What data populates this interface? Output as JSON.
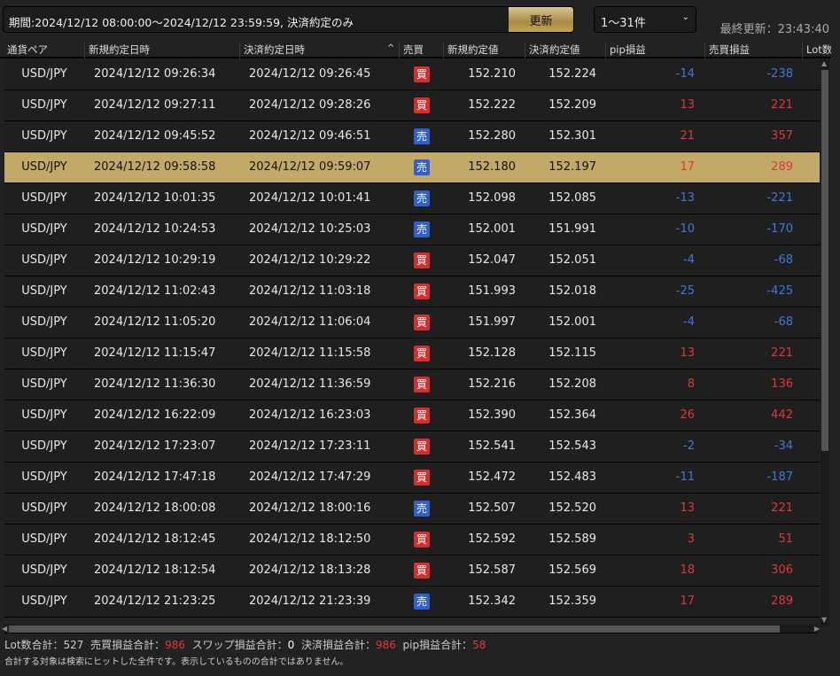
{
  "header": {
    "period": "期間:2024/12/12 08:00:00～2024/12/12 23:59:59, 決済約定のみ",
    "refresh_label": "更新",
    "range": "1～31件",
    "last_updated": "最終更新：23:43:40"
  },
  "columns": [
    "通貨ペア",
    "新規約定日時",
    "決済約定日時",
    "売買",
    "新規約定値",
    "決済約定値",
    "pip損益",
    "売買損益",
    "Lot数"
  ],
  "colors": {
    "buy": "#d32f2f",
    "sell": "#2f5fd0",
    "positive": "#e0363a",
    "negative": "#3c78e0",
    "selected_row": "#c3a968"
  },
  "rows": [
    {
      "pair": "USD/JPY",
      "open": "2024/12/12 09:26:34",
      "close": "2024/12/12 09:26:45",
      "side": "買",
      "open_price": "152.210",
      "close_price": "152.224",
      "pip": "-14",
      "pl": "-238"
    },
    {
      "pair": "USD/JPY",
      "open": "2024/12/12 09:27:11",
      "close": "2024/12/12 09:28:26",
      "side": "買",
      "open_price": "152.222",
      "close_price": "152.209",
      "pip": "13",
      "pl": "221"
    },
    {
      "pair": "USD/JPY",
      "open": "2024/12/12 09:45:52",
      "close": "2024/12/12 09:46:51",
      "side": "売",
      "open_price": "152.280",
      "close_price": "152.301",
      "pip": "21",
      "pl": "357"
    },
    {
      "pair": "USD/JPY",
      "open": "2024/12/12 09:58:58",
      "close": "2024/12/12 09:59:07",
      "side": "売",
      "open_price": "152.180",
      "close_price": "152.197",
      "pip": "17",
      "pl": "289",
      "selected": true
    },
    {
      "pair": "USD/JPY",
      "open": "2024/12/12 10:01:35",
      "close": "2024/12/12 10:01:41",
      "side": "売",
      "open_price": "152.098",
      "close_price": "152.085",
      "pip": "-13",
      "pl": "-221"
    },
    {
      "pair": "USD/JPY",
      "open": "2024/12/12 10:24:53",
      "close": "2024/12/12 10:25:03",
      "side": "売",
      "open_price": "152.001",
      "close_price": "151.991",
      "pip": "-10",
      "pl": "-170"
    },
    {
      "pair": "USD/JPY",
      "open": "2024/12/12 10:29:19",
      "close": "2024/12/12 10:29:22",
      "side": "買",
      "open_price": "152.047",
      "close_price": "152.051",
      "pip": "-4",
      "pl": "-68"
    },
    {
      "pair": "USD/JPY",
      "open": "2024/12/12 11:02:43",
      "close": "2024/12/12 11:03:18",
      "side": "買",
      "open_price": "151.993",
      "close_price": "152.018",
      "pip": "-25",
      "pl": "-425"
    },
    {
      "pair": "USD/JPY",
      "open": "2024/12/12 11:05:20",
      "close": "2024/12/12 11:06:04",
      "side": "買",
      "open_price": "151.997",
      "close_price": "152.001",
      "pip": "-4",
      "pl": "-68"
    },
    {
      "pair": "USD/JPY",
      "open": "2024/12/12 11:15:47",
      "close": "2024/12/12 11:15:58",
      "side": "買",
      "open_price": "152.128",
      "close_price": "152.115",
      "pip": "13",
      "pl": "221"
    },
    {
      "pair": "USD/JPY",
      "open": "2024/12/12 11:36:30",
      "close": "2024/12/12 11:36:59",
      "side": "買",
      "open_price": "152.216",
      "close_price": "152.208",
      "pip": "8",
      "pl": "136"
    },
    {
      "pair": "USD/JPY",
      "open": "2024/12/12 16:22:09",
      "close": "2024/12/12 16:23:03",
      "side": "買",
      "open_price": "152.390",
      "close_price": "152.364",
      "pip": "26",
      "pl": "442"
    },
    {
      "pair": "USD/JPY",
      "open": "2024/12/12 17:23:07",
      "close": "2024/12/12 17:23:11",
      "side": "買",
      "open_price": "152.541",
      "close_price": "152.543",
      "pip": "-2",
      "pl": "-34"
    },
    {
      "pair": "USD/JPY",
      "open": "2024/12/12 17:47:18",
      "close": "2024/12/12 17:47:29",
      "side": "買",
      "open_price": "152.472",
      "close_price": "152.483",
      "pip": "-11",
      "pl": "-187"
    },
    {
      "pair": "USD/JPY",
      "open": "2024/12/12 18:00:08",
      "close": "2024/12/12 18:00:16",
      "side": "売",
      "open_price": "152.507",
      "close_price": "152.520",
      "pip": "13",
      "pl": "221"
    },
    {
      "pair": "USD/JPY",
      "open": "2024/12/12 18:12:45",
      "close": "2024/12/12 18:12:50",
      "side": "買",
      "open_price": "152.592",
      "close_price": "152.589",
      "pip": "3",
      "pl": "51"
    },
    {
      "pair": "USD/JPY",
      "open": "2024/12/12 18:12:54",
      "close": "2024/12/12 18:13:28",
      "side": "買",
      "open_price": "152.587",
      "close_price": "152.569",
      "pip": "18",
      "pl": "306"
    },
    {
      "pair": "USD/JPY",
      "open": "2024/12/12 21:23:25",
      "close": "2024/12/12 21:23:39",
      "side": "売",
      "open_price": "152.342",
      "close_price": "152.359",
      "pip": "17",
      "pl": "289"
    }
  ],
  "totals": {
    "lot_label": "Lot数合計：",
    "lot": "527",
    "pl_label": "売買損益合計：",
    "pl": "986",
    "swap_label": "スワップ損益合計：",
    "swap": "0",
    "settle_label": "決済損益合計：",
    "settle": "986",
    "pip_label": "pip損益合計：",
    "pip": "58"
  },
  "note": "合計する対象は検索にヒットした全件です。表示しているものの合計ではありません。"
}
